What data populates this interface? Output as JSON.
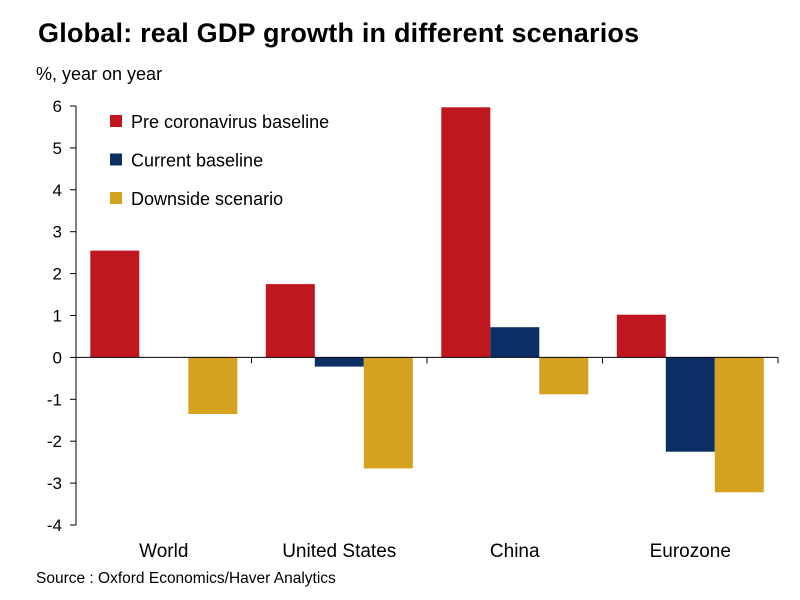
{
  "chart_data": {
    "type": "bar",
    "title": "Global: real GDP growth in different scenarios",
    "ylabel": "%, year on year",
    "source": "Source : Oxford Economics/Haver Analytics",
    "categories": [
      "World",
      "United States",
      "China",
      "Eurozone"
    ],
    "series": [
      {
        "name": "Pre coronavirus baseline",
        "color": "#C0161F",
        "values": [
          2.55,
          1.75,
          5.97,
          1.02
        ]
      },
      {
        "name": "Current baseline",
        "color": "#0B2F64",
        "values": [
          0,
          -0.22,
          0.72,
          -2.25
        ]
      },
      {
        "name": "Downside scenario",
        "color": "#D4A21F",
        "values": [
          -1.35,
          -2.65,
          -0.88,
          -3.22
        ]
      }
    ],
    "yticks": [
      "6",
      "5",
      "4",
      "3",
      "2",
      "1",
      "0",
      "-1",
      "-2",
      "-3",
      "-4"
    ],
    "ylim": [
      -4,
      6
    ],
    "grid": false,
    "legend_position": "top-left"
  }
}
